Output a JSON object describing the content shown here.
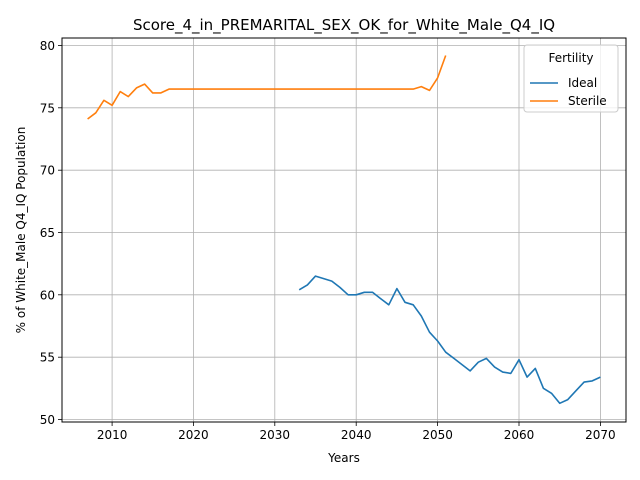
{
  "chart_data": {
    "type": "line",
    "title": "Score_4_in_PREMARITAL_SEX_OK_for_White_Male_Q4_IQ",
    "xlabel": "Years",
    "ylabel": "% of White_Male Q4_IQ Population",
    "xlim": [
      2003.85,
      2073.15
    ],
    "ylim": [
      49.8,
      80.6
    ],
    "xticks": [
      2010,
      2020,
      2030,
      2040,
      2050,
      2060,
      2070
    ],
    "yticks": [
      50,
      55,
      60,
      65,
      70,
      75,
      80
    ],
    "grid": true,
    "legend": {
      "title": "Fertility",
      "position": "top-right"
    },
    "series": [
      {
        "name": "Ideal",
        "color": "#1f77b4",
        "x": [
          2033,
          2034,
          2035,
          2036,
          2037,
          2038,
          2039,
          2040,
          2041,
          2042,
          2043,
          2044,
          2045,
          2046,
          2047,
          2048,
          2049,
          2050,
          2051,
          2052,
          2053,
          2054,
          2055,
          2056,
          2057,
          2058,
          2059,
          2060,
          2061,
          2062,
          2063,
          2064,
          2065,
          2066,
          2067,
          2068,
          2069,
          2070
        ],
        "y": [
          60.4,
          60.8,
          61.5,
          61.3,
          61.1,
          60.6,
          60.0,
          60.0,
          60.2,
          60.2,
          59.7,
          59.2,
          60.5,
          59.4,
          59.2,
          58.3,
          57.0,
          56.3,
          55.4,
          54.9,
          54.4,
          53.9,
          54.6,
          54.9,
          54.2,
          53.8,
          53.7,
          54.8,
          53.4,
          54.1,
          52.5,
          52.1,
          51.3,
          51.6,
          52.3,
          53.0,
          53.1,
          53.4
        ]
      },
      {
        "name": "Sterile",
        "color": "#ff7f0e",
        "x": [
          2007,
          2008,
          2009,
          2010,
          2011,
          2012,
          2013,
          2014,
          2015,
          2016,
          2017,
          2018,
          2019,
          2020,
          2021,
          2022,
          2023,
          2024,
          2025,
          2026,
          2027,
          2028,
          2029,
          2030,
          2031,
          2032,
          2033,
          2034,
          2035,
          2036,
          2037,
          2038,
          2039,
          2040,
          2041,
          2042,
          2043,
          2044,
          2045,
          2046,
          2047,
          2048,
          2049,
          2050,
          2051
        ],
        "y": [
          74.1,
          74.6,
          75.6,
          75.2,
          76.3,
          75.9,
          76.6,
          76.9,
          76.2,
          76.2,
          76.5,
          76.5,
          76.5,
          76.5,
          76.5,
          76.5,
          76.5,
          76.5,
          76.5,
          76.5,
          76.5,
          76.5,
          76.5,
          76.5,
          76.5,
          76.5,
          76.5,
          76.5,
          76.5,
          76.5,
          76.5,
          76.5,
          76.5,
          76.5,
          76.5,
          76.5,
          76.5,
          76.5,
          76.5,
          76.5,
          76.5,
          76.7,
          76.4,
          77.4,
          79.2
        ]
      }
    ]
  }
}
